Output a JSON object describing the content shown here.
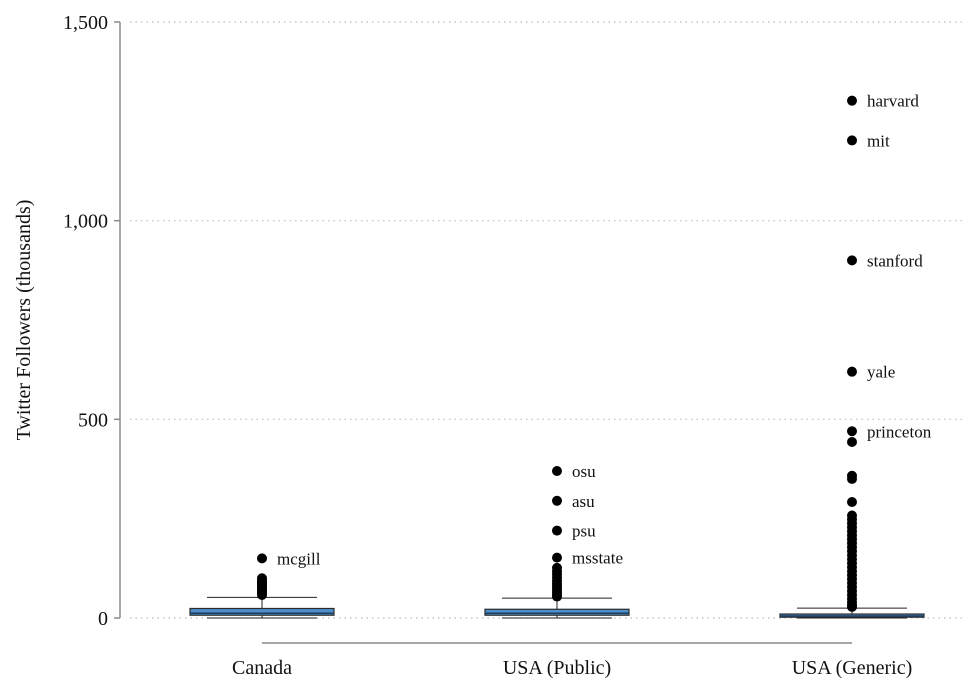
{
  "chart_data": {
    "type": "box",
    "ylabel": "Twitter Followers (thousands)",
    "xlabel": "",
    "ylim": [
      0,
      1500
    ],
    "yticks": [
      0,
      500,
      1000,
      1500
    ],
    "ytick_labels": [
      "0",
      "500",
      "1,000",
      "1,500"
    ],
    "grid": true,
    "box_color": "#4f8fc9",
    "categories": [
      "Canada",
      "USA (Public)",
      "USA (Generic)"
    ],
    "boxes": [
      {
        "category": "Canada",
        "whisker_low": 0,
        "q1": 7,
        "median": 12,
        "q3": 24,
        "whisker_high": 52,
        "outliers": [
          {
            "y": 150,
            "label": "mcgill"
          },
          {
            "y": 100
          },
          {
            "y": 95
          },
          {
            "y": 90
          },
          {
            "y": 86
          },
          {
            "y": 82
          },
          {
            "y": 78
          },
          {
            "y": 74
          },
          {
            "y": 70
          },
          {
            "y": 66
          },
          {
            "y": 62
          },
          {
            "y": 58
          }
        ]
      },
      {
        "category": "USA (Public)",
        "whisker_low": 0,
        "q1": 7,
        "median": 12,
        "q3": 22,
        "whisker_high": 50,
        "outliers": [
          {
            "y": 370,
            "label": "osu"
          },
          {
            "y": 295,
            "label": "asu"
          },
          {
            "y": 220,
            "label": "psu"
          },
          {
            "y": 152,
            "label": "msstate"
          },
          {
            "y": 126
          },
          {
            "y": 118
          },
          {
            "y": 110
          },
          {
            "y": 102
          },
          {
            "y": 94
          },
          {
            "y": 88
          },
          {
            "y": 82
          },
          {
            "y": 76
          },
          {
            "y": 70
          },
          {
            "y": 64
          },
          {
            "y": 58
          },
          {
            "y": 54
          }
        ]
      },
      {
        "category": "USA (Generic)",
        "whisker_low": 0,
        "q1": 2,
        "median": 5,
        "q3": 10,
        "whisker_high": 25,
        "outliers": [
          {
            "y": 1302,
            "label": "harvard"
          },
          {
            "y": 1202,
            "label": "mit"
          },
          {
            "y": 900,
            "label": "stanford"
          },
          {
            "y": 620,
            "label": "yale"
          },
          {
            "y": 470,
            "label": "princeton"
          },
          {
            "y": 443
          },
          {
            "y": 358
          },
          {
            "y": 350
          },
          {
            "y": 292
          },
          {
            "y": 258
          },
          {
            "y": 248
          },
          {
            "y": 238
          },
          {
            "y": 228
          },
          {
            "y": 218
          },
          {
            "y": 208
          },
          {
            "y": 198
          },
          {
            "y": 188
          },
          {
            "y": 178
          },
          {
            "y": 168
          },
          {
            "y": 158
          },
          {
            "y": 148
          },
          {
            "y": 138
          },
          {
            "y": 128
          },
          {
            "y": 118
          },
          {
            "y": 108
          },
          {
            "y": 98
          },
          {
            "y": 88
          },
          {
            "y": 78
          },
          {
            "y": 68
          },
          {
            "y": 58
          },
          {
            "y": 48
          },
          {
            "y": 40
          },
          {
            "y": 33
          },
          {
            "y": 28
          }
        ]
      }
    ]
  }
}
